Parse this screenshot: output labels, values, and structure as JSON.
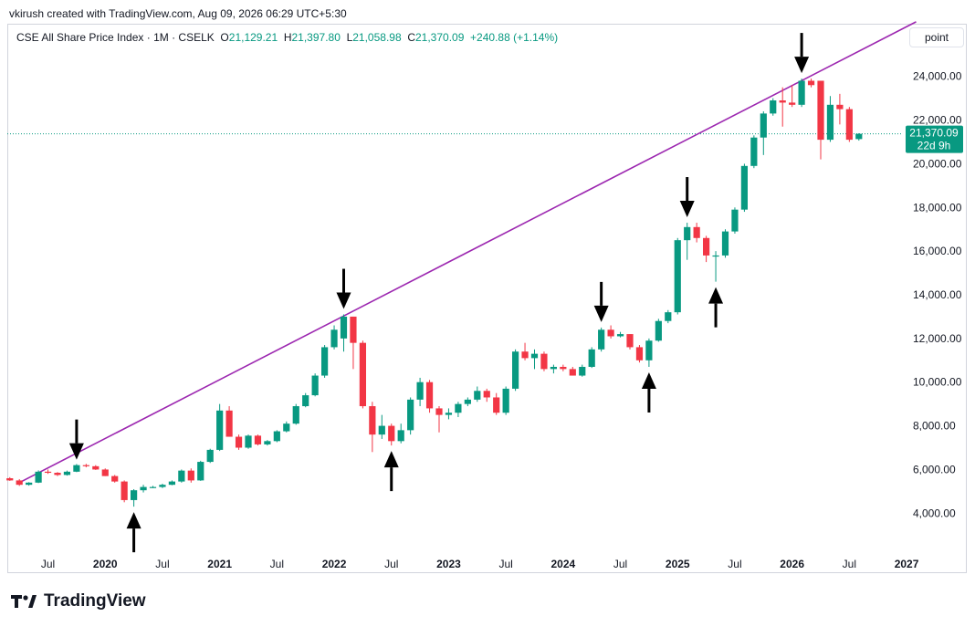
{
  "header": {
    "credit": "vkirush created with TradingView.com, Aug 09, 2026 06:29 UTC+5:30"
  },
  "legend": {
    "symbol": "CSE All Share Price Index · 1M · CSELK",
    "o_label": "O",
    "o": "21,129.21",
    "h_label": "H",
    "h": "21,397.80",
    "l_label": "L",
    "l": "21,058.98",
    "c_label": "C",
    "c": "21,370.09",
    "change": "+240.88 (+1.14%)"
  },
  "scale_button": "point",
  "last_price": {
    "value": "21,370.09",
    "countdown": "22d 9h"
  },
  "colors": {
    "up": "#089981",
    "down": "#f23645",
    "trendline": "#9c27b0",
    "last_line": "#089981"
  },
  "branding": {
    "name": "TradingView",
    "icon": "tradingview-logo-icon"
  },
  "chart_data": {
    "type": "candlestick",
    "timeframe": "1M",
    "y_ticks": [
      "4,000.00",
      "6,000.00",
      "8,000.00",
      "10,000.00",
      "12,000.00",
      "14,000.00",
      "16,000.00",
      "18,000.00",
      "20,000.00",
      "22,000.00",
      "24,000.00"
    ],
    "y_tick_values": [
      4000,
      6000,
      8000,
      10000,
      12000,
      14000,
      16000,
      18000,
      20000,
      22000,
      24000
    ],
    "x_ticks": [
      {
        "label": "Jul",
        "date": "2019-07"
      },
      {
        "label": "2020",
        "date": "2020-01"
      },
      {
        "label": "Jul",
        "date": "2020-07"
      },
      {
        "label": "2021",
        "date": "2021-01"
      },
      {
        "label": "Jul",
        "date": "2021-07"
      },
      {
        "label": "2022",
        "date": "2022-01"
      },
      {
        "label": "Jul",
        "date": "2022-07"
      },
      {
        "label": "2023",
        "date": "2023-01"
      },
      {
        "label": "Jul",
        "date": "2023-07"
      },
      {
        "label": "2024",
        "date": "2024-01"
      },
      {
        "label": "Jul",
        "date": "2024-07"
      },
      {
        "label": "2025",
        "date": "2025-01"
      },
      {
        "label": "Jul",
        "date": "2025-07"
      },
      {
        "label": "2026",
        "date": "2026-01"
      },
      {
        "label": "Jul",
        "date": "2026-07"
      },
      {
        "label": "2027",
        "date": "2027-01"
      }
    ],
    "candles": [
      [
        "2019-03",
        5600,
        5650,
        5480,
        5500
      ],
      [
        "2019-04",
        5500,
        5560,
        5250,
        5300
      ],
      [
        "2019-05",
        5300,
        5420,
        5260,
        5400
      ],
      [
        "2019-06",
        5400,
        5960,
        5380,
        5900
      ],
      [
        "2019-07",
        5900,
        6000,
        5800,
        5850
      ],
      [
        "2019-08",
        5850,
        5880,
        5700,
        5750
      ],
      [
        "2019-09",
        5750,
        5950,
        5720,
        5900
      ],
      [
        "2019-10",
        5900,
        6250,
        5880,
        6200
      ],
      [
        "2019-11",
        6200,
        6260,
        6100,
        6150
      ],
      [
        "2019-12",
        6150,
        6200,
        5980,
        6000
      ],
      [
        "2020-01",
        6000,
        6050,
        5700,
        5700
      ],
      [
        "2020-02",
        5700,
        5750,
        5400,
        5450
      ],
      [
        "2020-03",
        5450,
        5500,
        4500,
        4600
      ],
      [
        "2020-04",
        4600,
        5100,
        4300,
        5050
      ],
      [
        "2020-05",
        5050,
        5300,
        4950,
        5200
      ],
      [
        "2020-06",
        5200,
        5250,
        5150,
        5200
      ],
      [
        "2020-07",
        5200,
        5350,
        5150,
        5300
      ],
      [
        "2020-08",
        5300,
        5500,
        5280,
        5450
      ],
      [
        "2020-09",
        5450,
        6000,
        5400,
        5950
      ],
      [
        "2020-10",
        5950,
        6050,
        5400,
        5500
      ],
      [
        "2020-11",
        5500,
        6400,
        5480,
        6350
      ],
      [
        "2020-12",
        6350,
        6950,
        6300,
        6900
      ],
      [
        "2021-01",
        6900,
        9000,
        6850,
        8700
      ],
      [
        "2021-02",
        8700,
        8900,
        7500,
        7500
      ],
      [
        "2021-03",
        7500,
        7600,
        6900,
        7000
      ],
      [
        "2021-04",
        7000,
        7600,
        6950,
        7550
      ],
      [
        "2021-05",
        7550,
        7600,
        7100,
        7150
      ],
      [
        "2021-06",
        7150,
        7350,
        7100,
        7300
      ],
      [
        "2021-07",
        7300,
        7800,
        7250,
        7750
      ],
      [
        "2021-08",
        7750,
        8200,
        7700,
        8100
      ],
      [
        "2021-09",
        8100,
        9000,
        8050,
        8900
      ],
      [
        "2021-10",
        8900,
        9500,
        8850,
        9400
      ],
      [
        "2021-11",
        9400,
        10400,
        9350,
        10300
      ],
      [
        "2021-12",
        10300,
        11700,
        10200,
        11600
      ],
      [
        "2022-01",
        11600,
        12600,
        11500,
        12400
      ],
      [
        "2022-02",
        12000,
        13100,
        11400,
        13000
      ],
      [
        "2022-03",
        13000,
        13000,
        10600,
        11800
      ],
      [
        "2022-04",
        11800,
        11900,
        8800,
        8900
      ],
      [
        "2022-05",
        8900,
        9100,
        6800,
        7600
      ],
      [
        "2022-06",
        7600,
        8500,
        7400,
        8000
      ],
      [
        "2022-07",
        8000,
        8100,
        7100,
        7300
      ],
      [
        "2022-08",
        7300,
        8100,
        7200,
        7800
      ],
      [
        "2022-09",
        7800,
        9300,
        7600,
        9200
      ],
      [
        "2022-10",
        9200,
        10200,
        8900,
        10000
      ],
      [
        "2022-11",
        10000,
        10100,
        8600,
        8800
      ],
      [
        "2022-12",
        8800,
        8900,
        7700,
        8500
      ],
      [
        "2023-01",
        8500,
        8800,
        8300,
        8600
      ],
      [
        "2023-02",
        8600,
        9100,
        8400,
        9000
      ],
      [
        "2023-03",
        9000,
        9300,
        8900,
        9200
      ],
      [
        "2023-04",
        9200,
        9800,
        9100,
        9600
      ],
      [
        "2023-05",
        9600,
        9700,
        9100,
        9300
      ],
      [
        "2023-06",
        9300,
        9500,
        8500,
        8600
      ],
      [
        "2023-07",
        8600,
        9800,
        8500,
        9700
      ],
      [
        "2023-08",
        9700,
        11500,
        9600,
        11400
      ],
      [
        "2023-09",
        11400,
        11800,
        11000,
        11100
      ],
      [
        "2023-10",
        11100,
        11500,
        10600,
        11300
      ],
      [
        "2023-11",
        11300,
        11400,
        10500,
        10600
      ],
      [
        "2023-12",
        10600,
        10800,
        10400,
        10700
      ],
      [
        "2024-01",
        10700,
        10800,
        10500,
        10600
      ],
      [
        "2024-02",
        10600,
        10700,
        10300,
        10300
      ],
      [
        "2024-03",
        10300,
        10800,
        10250,
        10700
      ],
      [
        "2024-04",
        10700,
        11600,
        10650,
        11500
      ],
      [
        "2024-05",
        11500,
        12500,
        11400,
        12400
      ],
      [
        "2024-06",
        12400,
        12600,
        12000,
        12100
      ],
      [
        "2024-07",
        12100,
        12300,
        12050,
        12200
      ],
      [
        "2024-08",
        12200,
        12200,
        11500,
        11600
      ],
      [
        "2024-09",
        11600,
        11700,
        10900,
        11000
      ],
      [
        "2024-10",
        11000,
        12000,
        10700,
        11900
      ],
      [
        "2024-11",
        11900,
        12900,
        11850,
        12800
      ],
      [
        "2024-12",
        12800,
        13300,
        12700,
        13200
      ],
      [
        "2025-01",
        13200,
        16600,
        13100,
        16500
      ],
      [
        "2025-02",
        16500,
        17300,
        15600,
        17100
      ],
      [
        "2025-03",
        17100,
        17300,
        16400,
        16600
      ],
      [
        "2025-04",
        16600,
        16700,
        15500,
        15800
      ],
      [
        "2025-05",
        15800,
        16000,
        14600,
        15800
      ],
      [
        "2025-06",
        15800,
        17000,
        15700,
        16900
      ],
      [
        "2025-07",
        16900,
        18000,
        16800,
        17900
      ],
      [
        "2025-08",
        17900,
        20000,
        17800,
        19900
      ],
      [
        "2025-09",
        19900,
        21300,
        19800,
        21200
      ],
      [
        "2025-10",
        21200,
        22400,
        20400,
        22300
      ],
      [
        "2025-11",
        22300,
        23000,
        22200,
        22900
      ],
      [
        "2025-12",
        22900,
        23500,
        21700,
        22800
      ],
      [
        "2026-01",
        22800,
        23600,
        22600,
        22700
      ],
      [
        "2026-02",
        22700,
        23900,
        22600,
        23800
      ],
      [
        "2026-03",
        23800,
        23900,
        23500,
        23600
      ],
      [
        "2026-04",
        23800,
        23800,
        20200,
        21100
      ],
      [
        "2026-05",
        21100,
        23100,
        21000,
        22700
      ],
      [
        "2026-06",
        22700,
        23200,
        21800,
        22500
      ],
      [
        "2026-07",
        22500,
        22600,
        21000,
        21100
      ],
      [
        "2026-08",
        21129.21,
        21397.8,
        21058.98,
        21370.09
      ]
    ],
    "trendline": {
      "from": [
        "2019-04",
        5400
      ],
      "to": [
        "2027-02",
        26500
      ]
    },
    "arrows": [
      {
        "date": "2019-10",
        "value": 6200,
        "dir": "down"
      },
      {
        "date": "2020-04",
        "value": 4300,
        "dir": "up"
      },
      {
        "date": "2022-02",
        "value": 13100,
        "dir": "down"
      },
      {
        "date": "2022-07",
        "value": 7100,
        "dir": "up"
      },
      {
        "date": "2024-05",
        "value": 12500,
        "dir": "down"
      },
      {
        "date": "2024-10",
        "value": 10700,
        "dir": "up"
      },
      {
        "date": "2025-02",
        "value": 17300,
        "dir": "down"
      },
      {
        "date": "2025-05",
        "value": 14600,
        "dir": "up"
      },
      {
        "date": "2026-02",
        "value": 23900,
        "dir": "down"
      }
    ]
  }
}
